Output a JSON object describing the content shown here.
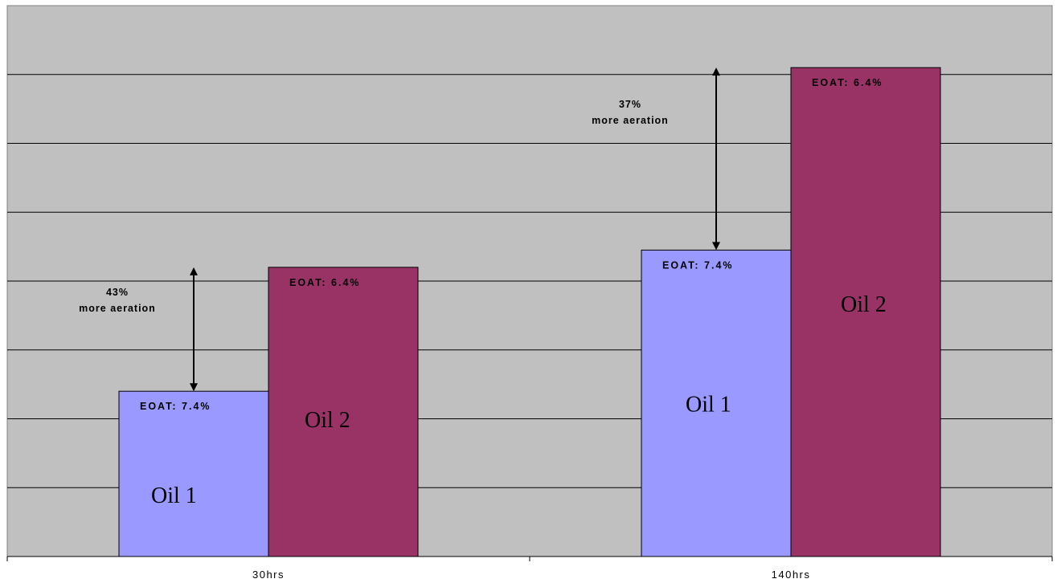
{
  "chart_data": {
    "type": "bar",
    "title": "",
    "xlabel": "",
    "ylabel": "",
    "categories": [
      "30hrs",
      "140hrs"
    ],
    "series": [
      {
        "name": "Oil 1",
        "values": [
          2.4,
          4.45
        ],
        "color": "#9999ff",
        "bar_labels": [
          "EOAT: 7.4%",
          "EOAT: 7.4%"
        ]
      },
      {
        "name": "Oil 2",
        "values": [
          4.2,
          7.1
        ],
        "color": "#993366",
        "bar_labels": [
          "EOAT: 6.4%",
          "EOAT: 6.4%"
        ]
      }
    ],
    "ylim": [
      0,
      8
    ],
    "y_gridlines": [
      1,
      2,
      3,
      4,
      5,
      6,
      7
    ],
    "grid": true,
    "plot_background": "#c0c0c0",
    "annotations": [
      {
        "category": "30hrs",
        "line1": "43%",
        "line2": "more aeration",
        "from_value": 2.4,
        "to_value": 4.2
      },
      {
        "category": "140hrs",
        "line1": "37%",
        "line2": "more aeration",
        "from_value": 4.45,
        "to_value": 7.1
      }
    ]
  }
}
